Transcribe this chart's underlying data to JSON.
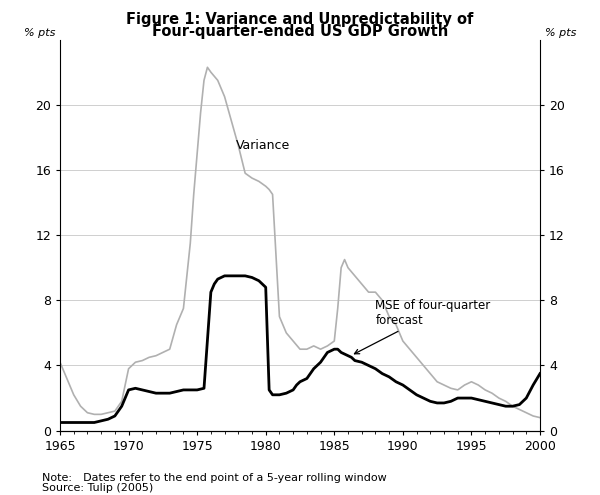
{
  "title_line1": "Figure 1: Variance and Unpredictability of",
  "title_line2": "Four-quarter-ended US GDP Growth",
  "ylabel": "% pts",
  "note": "Note: Dates refer to the end point of a 5-year rolling window",
  "source": "Source: Tulip (2005)",
  "xlim": [
    1965,
    2000
  ],
  "ylim": [
    0,
    24
  ],
  "yticks": [
    0,
    4,
    8,
    12,
    16,
    20
  ],
  "xticks": [
    1965,
    1970,
    1975,
    1980,
    1985,
    1990,
    1995,
    2000
  ],
  "variance_label": "Variance",
  "mse_label": "MSE of four-quarter\nforecast",
  "variance_color": "#b0b0b0",
  "mse_color": "#000000",
  "variance_x": [
    1965.0,
    1965.5,
    1966.0,
    1966.5,
    1967.0,
    1967.5,
    1968.0,
    1968.5,
    1969.0,
    1969.5,
    1970.0,
    1970.5,
    1971.0,
    1971.5,
    1972.0,
    1972.5,
    1973.0,
    1973.5,
    1974.0,
    1974.25,
    1974.5,
    1974.75,
    1975.0,
    1975.25,
    1975.5,
    1975.75,
    1976.0,
    1976.5,
    1977.0,
    1977.5,
    1978.0,
    1978.5,
    1979.0,
    1979.5,
    1980.0,
    1980.25,
    1980.5,
    1981.0,
    1981.5,
    1982.0,
    1982.5,
    1983.0,
    1983.5,
    1984.0,
    1984.5,
    1985.0,
    1985.25,
    1985.5,
    1985.75,
    1986.0,
    1986.5,
    1987.0,
    1987.5,
    1988.0,
    1988.5,
    1989.0,
    1989.5,
    1990.0,
    1990.5,
    1991.0,
    1991.5,
    1992.0,
    1992.5,
    1993.0,
    1993.5,
    1994.0,
    1994.5,
    1995.0,
    1995.5,
    1996.0,
    1996.5,
    1997.0,
    1997.5,
    1998.0,
    1998.5,
    1999.0,
    1999.5,
    2000.0
  ],
  "variance_y": [
    4.2,
    3.2,
    2.2,
    1.5,
    1.1,
    1.0,
    1.0,
    1.1,
    1.2,
    1.8,
    3.8,
    4.2,
    4.3,
    4.5,
    4.6,
    4.8,
    5.0,
    6.5,
    7.5,
    9.5,
    11.5,
    14.5,
    17.0,
    19.5,
    21.5,
    22.3,
    22.0,
    21.5,
    20.5,
    19.0,
    17.5,
    15.8,
    15.5,
    15.3,
    15.0,
    14.8,
    14.5,
    7.0,
    6.0,
    5.5,
    5.0,
    5.0,
    5.2,
    5.0,
    5.2,
    5.5,
    7.5,
    10.0,
    10.5,
    10.0,
    9.5,
    9.0,
    8.5,
    8.5,
    8.0,
    7.0,
    6.5,
    5.5,
    5.0,
    4.5,
    4.0,
    3.5,
    3.0,
    2.8,
    2.6,
    2.5,
    2.8,
    3.0,
    2.8,
    2.5,
    2.3,
    2.0,
    1.8,
    1.5,
    1.3,
    1.1,
    0.9,
    0.8
  ],
  "mse_x": [
    1965.0,
    1965.5,
    1966.0,
    1966.5,
    1967.0,
    1967.5,
    1968.0,
    1968.5,
    1969.0,
    1969.5,
    1970.0,
    1970.5,
    1971.0,
    1971.5,
    1972.0,
    1972.5,
    1973.0,
    1973.5,
    1974.0,
    1974.5,
    1975.0,
    1975.5,
    1976.0,
    1976.25,
    1976.5,
    1977.0,
    1977.5,
    1978.0,
    1978.5,
    1979.0,
    1979.25,
    1979.5,
    1979.75,
    1980.0,
    1980.25,
    1980.5,
    1981.0,
    1981.5,
    1982.0,
    1982.25,
    1982.5,
    1983.0,
    1983.25,
    1983.5,
    1983.75,
    1984.0,
    1984.25,
    1984.5,
    1984.75,
    1985.0,
    1985.25,
    1985.5,
    1985.75,
    1986.0,
    1986.25,
    1986.5,
    1987.0,
    1987.5,
    1988.0,
    1988.5,
    1989.0,
    1989.5,
    1990.0,
    1990.5,
    1991.0,
    1991.5,
    1992.0,
    1992.5,
    1993.0,
    1993.5,
    1994.0,
    1994.5,
    1995.0,
    1995.5,
    1996.0,
    1996.5,
    1997.0,
    1997.5,
    1998.0,
    1998.5,
    1999.0,
    1999.5,
    2000.0
  ],
  "mse_y": [
    0.5,
    0.5,
    0.5,
    0.5,
    0.5,
    0.5,
    0.6,
    0.7,
    0.9,
    1.5,
    2.5,
    2.6,
    2.5,
    2.4,
    2.3,
    2.3,
    2.3,
    2.4,
    2.5,
    2.5,
    2.5,
    2.6,
    8.5,
    9.0,
    9.3,
    9.5,
    9.5,
    9.5,
    9.5,
    9.4,
    9.3,
    9.2,
    9.0,
    8.8,
    2.5,
    2.2,
    2.2,
    2.3,
    2.5,
    2.8,
    3.0,
    3.2,
    3.5,
    3.8,
    4.0,
    4.2,
    4.5,
    4.8,
    4.9,
    5.0,
    5.0,
    4.8,
    4.7,
    4.6,
    4.5,
    4.3,
    4.2,
    4.0,
    3.8,
    3.5,
    3.3,
    3.0,
    2.8,
    2.5,
    2.2,
    2.0,
    1.8,
    1.7,
    1.7,
    1.8,
    2.0,
    2.0,
    2.0,
    1.9,
    1.8,
    1.7,
    1.6,
    1.5,
    1.5,
    1.6,
    2.0,
    2.8,
    3.5
  ]
}
